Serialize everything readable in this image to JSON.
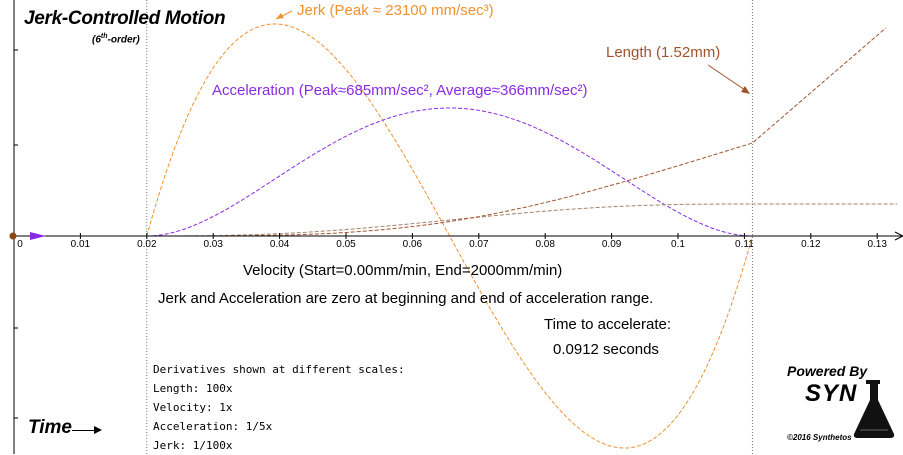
{
  "title": "Jerk-Controlled Motion",
  "subtitle_main": "(6",
  "subtitle_sup": "th",
  "subtitle_rest": "-order)",
  "annotations": {
    "jerk": "Jerk (Peak ≈ 23100 mm/sec³)",
    "length": "Length (1.52mm)",
    "acceleration": "Acceleration (Peak≈685mm/sec², Average≈366mm/sec²)",
    "velocity": "Velocity (Start=0.00mm/min, End=2000mm/min)",
    "note": "Jerk and Acceleration are zero at beginning and end of acceleration range.",
    "time_to_accelerate": "Time to accelerate:",
    "time_value": "0.0912 seconds"
  },
  "derivatives": {
    "heading": "Derivatives shown at different scales:",
    "length": "Length: 100x",
    "velocity": "Velocity: 1x",
    "acceleration": "Acceleration: 1/5x",
    "jerk": "Jerk: 1/100x"
  },
  "time_label": "Time",
  "branding": {
    "powered_by": "Powered By",
    "logo_text": "SYN",
    "copyright": "©2016 Synthetos"
  },
  "colors": {
    "jerk": "#f0922f",
    "acceleration": "#8a2be2",
    "velocity": "#a3826c",
    "length": "#a0522d",
    "axis": "#000000"
  },
  "chart_data": {
    "type": "line",
    "x_ticks": [
      "0",
      "0.01",
      "0.02",
      "0.03",
      "0.04",
      "0.05",
      "0.06",
      "0.07",
      "0.08",
      "0.09",
      "0.1",
      "0.11",
      "0.12",
      "0.13"
    ],
    "xlim": [
      0,
      0.133
    ],
    "accel_start": 0.02,
    "accel_end": 0.1112,
    "series": [
      {
        "name": "Jerk",
        "key": "jerk",
        "peak": 23100
      },
      {
        "name": "Acceleration",
        "key": "acceleration",
        "peak": 685,
        "average": 366
      },
      {
        "name": "Velocity",
        "key": "velocity",
        "start": 0.0,
        "end": 2000
      },
      {
        "name": "Length",
        "key": "length",
        "end": 1.52
      }
    ]
  }
}
